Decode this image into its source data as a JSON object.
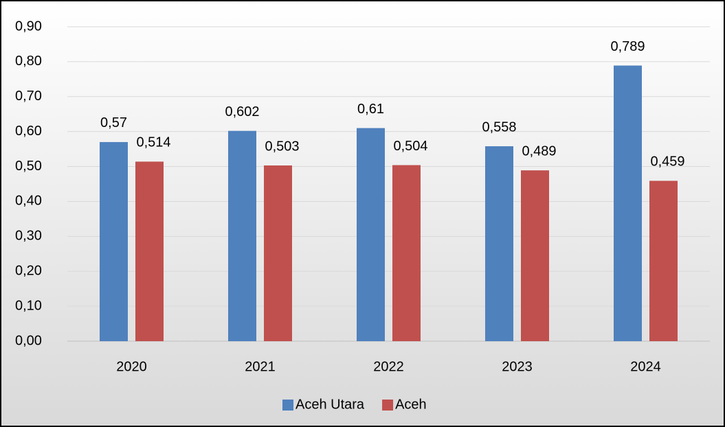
{
  "chart_data": {
    "type": "bar",
    "categories": [
      "2020",
      "2021",
      "2022",
      "2023",
      "2024"
    ],
    "series": [
      {
        "name": "Aceh Utara",
        "color": "#4f81bd",
        "values": [
          0.57,
          0.602,
          0.61,
          0.558,
          0.789
        ],
        "value_labels": [
          "0,57",
          "0,602",
          "0,61",
          "0,558",
          "0,789"
        ]
      },
      {
        "name": "Aceh",
        "color": "#c0504d",
        "values": [
          0.514,
          0.503,
          0.504,
          0.489,
          0.459
        ],
        "value_labels": [
          "0,514",
          "0,503",
          "0,504",
          "0,489",
          "0,459"
        ]
      }
    ],
    "ylim": [
      0,
      0.9
    ],
    "yticks": [
      {
        "value": 0,
        "label": "0,00"
      },
      {
        "value": 0.1,
        "label": "0,10"
      },
      {
        "value": 0.2,
        "label": "0,20"
      },
      {
        "value": 0.3,
        "label": "0,30"
      },
      {
        "value": 0.4,
        "label": "0,40"
      },
      {
        "value": 0.5,
        "label": "0,50"
      },
      {
        "value": 0.6,
        "label": "0,60"
      },
      {
        "value": 0.7,
        "label": "0,70"
      },
      {
        "value": 0.8,
        "label": "0,80"
      },
      {
        "value": 0.9,
        "label": "0,90"
      }
    ],
    "grid": true,
    "legend": "bottom"
  }
}
